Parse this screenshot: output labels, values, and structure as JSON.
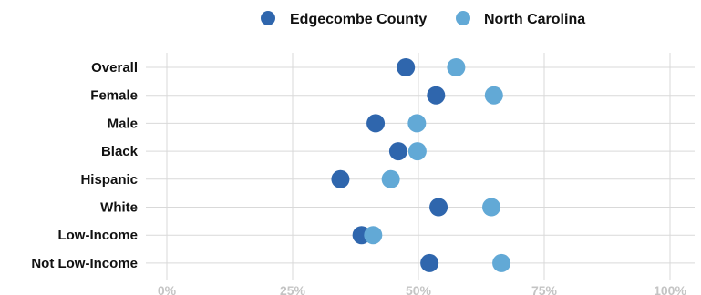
{
  "chart_data": {
    "type": "scatter",
    "title": "",
    "xlabel": "",
    "ylabel": "",
    "xlim": [
      0,
      1
    ],
    "x_ticks": [
      0,
      0.25,
      0.5,
      0.75,
      1
    ],
    "x_tick_labels": [
      "0%",
      "25%",
      "50%",
      "75%",
      "100%"
    ],
    "categories": [
      "Overall",
      "Female",
      "Male",
      "Black",
      "Hispanic",
      "White",
      "Low-Income",
      "Not Low-Income"
    ],
    "series": [
      {
        "name": "Edgecombe County",
        "color": "#2f66ad",
        "values": [
          0.475,
          0.535,
          0.415,
          0.46,
          0.345,
          0.54,
          0.387,
          0.522
        ]
      },
      {
        "name": "North Carolina",
        "color": "#62a9d6",
        "values": [
          0.575,
          0.65,
          0.497,
          0.498,
          0.445,
          0.645,
          0.41,
          0.665
        ]
      }
    ],
    "legend": {
      "position": "top-center"
    },
    "grid": true
  }
}
